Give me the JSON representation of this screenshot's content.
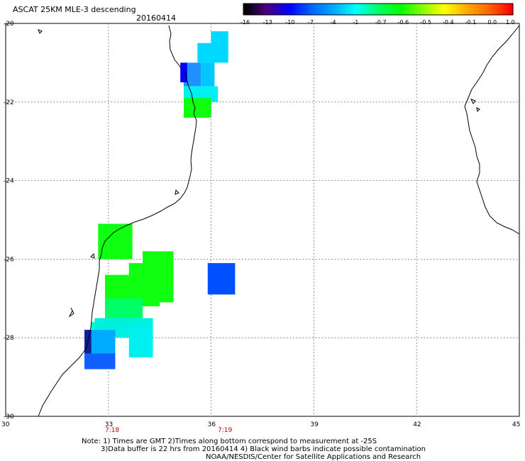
{
  "header": {
    "title": "ASCAT 25KM MLE-3 descending",
    "date": "20160414"
  },
  "colorbar": {
    "labels": [
      "-16",
      "-13",
      "-10",
      "-7",
      "-4",
      "-1",
      "-0.7",
      "-0.6",
      "-0.5",
      "-0.4",
      "-0.1",
      "0.0",
      "1.0"
    ],
    "colors": [
      "#000000",
      "#4b0082",
      "#0000ff",
      "#0066ff",
      "#00aaff",
      "#00ffff",
      "#00ff66",
      "#00ff00",
      "#88ff00",
      "#ffff00",
      "#ffaa00",
      "#ff6600",
      "#ff0000"
    ]
  },
  "axes": {
    "x_ticks": [
      "30",
      "33",
      "36",
      "39",
      "42",
      "45"
    ],
    "y_ticks": [
      "-20",
      "-22",
      "-24",
      "-26",
      "-28",
      "-30"
    ]
  },
  "times": [
    "7:18",
    "7:19"
  ],
  "notes": [
    "Note: 1) Times are GMT 2)Times along bottom correspond to measurement at -25S",
    "3)Data buffer is 22 hrs from 20160414 4) Black wind barbs indicate possible contamination",
    "NOAA/NESDIS/Center for Satellite Applications and Research"
  ],
  "chart_data": {
    "type": "heatmap",
    "title": "ASCAT 25KM MLE-3 descending",
    "xlim": [
      30,
      45
    ],
    "ylim": [
      -30,
      -20
    ],
    "grid": true,
    "cells": [
      {
        "lon": [
          36.0,
          36.5
        ],
        "lat": [
          -21.0,
          -20.2
        ],
        "color": "#00d8ff"
      },
      {
        "lon": [
          35.6,
          36.0
        ],
        "lat": [
          -21.0,
          -20.5
        ],
        "color": "#00d8ff"
      },
      {
        "lon": [
          35.2,
          35.7
        ],
        "lat": [
          -21.6,
          -21.0
        ],
        "color": "#1e90ff"
      },
      {
        "lon": [
          35.1,
          35.3
        ],
        "lat": [
          -21.5,
          -21.0
        ],
        "color": "#0000ff"
      },
      {
        "lon": [
          35.7,
          36.1
        ],
        "lat": [
          -21.6,
          -21.0
        ],
        "color": "#00c8ff"
      },
      {
        "lon": [
          35.2,
          36.2
        ],
        "lat": [
          -22.0,
          -21.6
        ],
        "color": "#00f0f0"
      },
      {
        "lon": [
          35.2,
          36.0
        ],
        "lat": [
          -22.4,
          -21.9
        ],
        "color": "#10ff10"
      },
      {
        "lon": [
          32.7,
          33.7
        ],
        "lat": [
          -26.0,
          -25.1
        ],
        "color": "#10ff10"
      },
      {
        "lon": [
          34.0,
          34.9
        ],
        "lat": [
          -26.6,
          -25.8
        ],
        "color": "#10ff10"
      },
      {
        "lon": [
          33.6,
          34.9
        ],
        "lat": [
          -27.1,
          -26.1
        ],
        "color": "#10ff10"
      },
      {
        "lon": [
          32.9,
          34.5
        ],
        "lat": [
          -27.2,
          -26.4
        ],
        "color": "#10ff10"
      },
      {
        "lon": [
          32.9,
          34.0
        ],
        "lat": [
          -27.5,
          -27.0
        ],
        "color": "#00ff66"
      },
      {
        "lon": [
          32.5,
          33.3
        ],
        "lat": [
          -28.0,
          -27.6
        ],
        "color": "#00ffcc"
      },
      {
        "lon": [
          32.6,
          34.3
        ],
        "lat": [
          -28.0,
          -27.5
        ],
        "color": "#00f0e0"
      },
      {
        "lon": [
          32.5,
          32.9
        ],
        "lat": [
          -28.3,
          -27.8
        ],
        "color": "#00d8ff"
      },
      {
        "lon": [
          32.3,
          33.2
        ],
        "lat": [
          -28.6,
          -27.8
        ],
        "color": "#00aaff"
      },
      {
        "lon": [
          33.6,
          34.3
        ],
        "lat": [
          -28.5,
          -27.7
        ],
        "color": "#00f0f0"
      },
      {
        "lon": [
          32.3,
          33.2
        ],
        "lat": [
          -28.8,
          -28.4
        ],
        "color": "#1060ff"
      },
      {
        "lon": [
          32.3,
          32.5
        ],
        "lat": [
          -28.4,
          -27.8
        ],
        "color": "#102090"
      },
      {
        "lon": [
          35.9,
          36.7
        ],
        "lat": [
          -26.9,
          -26.1
        ],
        "color": "#0050ff"
      }
    ]
  }
}
